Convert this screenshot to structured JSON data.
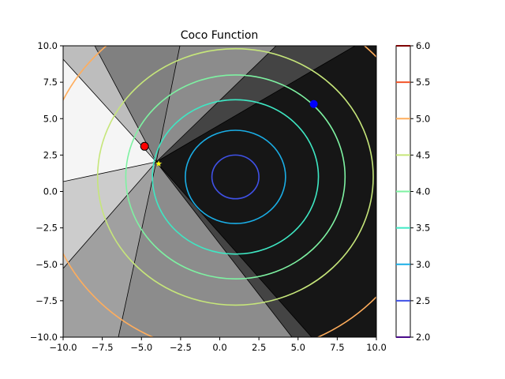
{
  "chart_data": {
    "type": "contour",
    "title": "Coco Function",
    "xlabel": "",
    "ylabel": "",
    "xlim": [
      -10,
      10
    ],
    "ylim": [
      -10,
      10
    ],
    "xticks": [
      "−10.0",
      "−7.5",
      "−5.0",
      "−2.5",
      "0.0",
      "2.5",
      "5.0",
      "7.5",
      "10.0"
    ],
    "xtick_values": [
      -10,
      -7.5,
      -5,
      -2.5,
      0,
      2.5,
      5,
      7.5,
      10
    ],
    "yticks": [
      "−10.0",
      "−7.5",
      "−5.0",
      "−2.5",
      "0.0",
      "2.5",
      "5.0",
      "7.5",
      "10.0"
    ],
    "ytick_values": [
      -10,
      -7.5,
      -5,
      -2.5,
      0,
      2.5,
      5,
      7.5,
      10
    ],
    "center": [
      1,
      1
    ],
    "contours": [
      {
        "level": 2.5,
        "radius": 1.5,
        "color": "#3f51e6"
      },
      {
        "level": 3.0,
        "radius": 3.2,
        "color": "#1aaee6"
      },
      {
        "level": 3.5,
        "radius": 5.3,
        "color": "#3ee8c4"
      },
      {
        "level": 4.0,
        "radius": 7.0,
        "color": "#7ef2a2"
      },
      {
        "level": 4.5,
        "radius": 8.8,
        "color": "#c6e67a"
      },
      {
        "level": 5.0,
        "radius": 12.2,
        "color": "#ffad5c"
      }
    ],
    "colorbar": {
      "ticks": [
        "2.0",
        "2.5",
        "3.0",
        "3.5",
        "4.0",
        "4.5",
        "5.0",
        "5.5",
        "6.0"
      ],
      "tick_values": [
        2.0,
        2.5,
        3.0,
        3.5,
        4.0,
        4.5,
        5.0,
        5.5,
        6.0
      ],
      "range": [
        2,
        6
      ],
      "colors": [
        "#4b0c8b",
        "#3f51e6",
        "#1aaee6",
        "#3ee8c4",
        "#7ef2a2",
        "#c6e67a",
        "#ffad5c",
        "#f2552a",
        "#7f0000"
      ]
    },
    "points": [
      {
        "name": "red-marker",
        "x": -4.8,
        "y": 3.1,
        "color": "#ff0000"
      },
      {
        "name": "blue-marker",
        "x": 6.0,
        "y": 6.0,
        "color": "#0000ff"
      },
      {
        "name": "yellow-star",
        "x": -3.9,
        "y": 1.9,
        "color": "#ffff00"
      }
    ],
    "background": {
      "type": "grayscale-regions",
      "colors": [
        "#f5f5f5",
        "#cccccc",
        "#bdbdbd",
        "#a0a0a0",
        "#8c8c8c",
        "#808080",
        "#444444",
        "#161616"
      ]
    }
  }
}
